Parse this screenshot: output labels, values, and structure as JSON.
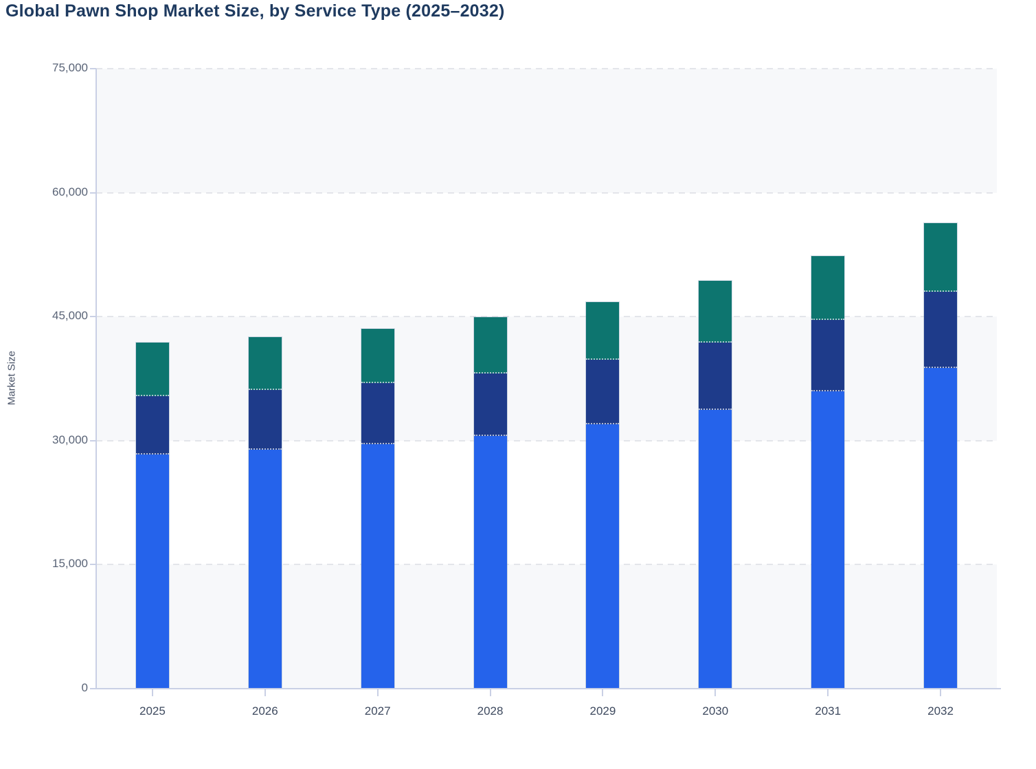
{
  "header": {
    "title": "Global Pawn Shop Market Size, by Service Type (2025–2032)"
  },
  "chart_data": {
    "type": "bar",
    "stacked": true,
    "title": "Global Pawn Shop Market Size, by Service Type (2025–2032)",
    "xlabel": "",
    "ylabel": "Market Size",
    "ylim": [
      0,
      75000
    ],
    "yticks": [
      0,
      15000,
      30000,
      45000,
      60000,
      75000
    ],
    "ytick_labels": [
      "0",
      "15,000",
      "30,000",
      "45,000",
      "60,000",
      "75,000"
    ],
    "categories": [
      "2025",
      "2026",
      "2027",
      "2028",
      "2029",
      "2030",
      "2031",
      "2032"
    ],
    "series": [
      {
        "name": "bottom-segment-blue",
        "color": "#2563eb",
        "values": [
          28300,
          28900,
          29550,
          30600,
          32000,
          33700,
          36000,
          38800
        ]
      },
      {
        "name": "middle-segment-navy",
        "color": "#1e3b8a",
        "values": [
          7100,
          7250,
          7400,
          7500,
          7750,
          8200,
          8600,
          9250
        ]
      },
      {
        "name": "top-segment-teal",
        "color": "#0d756f",
        "values": [
          6450,
          6400,
          6550,
          6800,
          7050,
          7400,
          7700,
          8250
        ]
      }
    ],
    "stack_totals": [
      41850,
      42550,
      43500,
      44900,
      46800,
      49300,
      52300,
      56300
    ],
    "legend_visible": false,
    "grid": "horizontal-dashed",
    "background_bands": "alternating light-gray and white, 15000-unit stripes"
  },
  "colors": {
    "title_text": "#1e3a5f",
    "axis_line": "#c9d0e5",
    "gridline": "#e3e5ea",
    "band_light": "#f7f8fa",
    "y_tick_text": "#5a6477",
    "x_tick_text": "#3e4a5f",
    "segment_blue": "#2563eb",
    "segment_navy": "#1e3b8a",
    "segment_teal": "#0d756f"
  }
}
